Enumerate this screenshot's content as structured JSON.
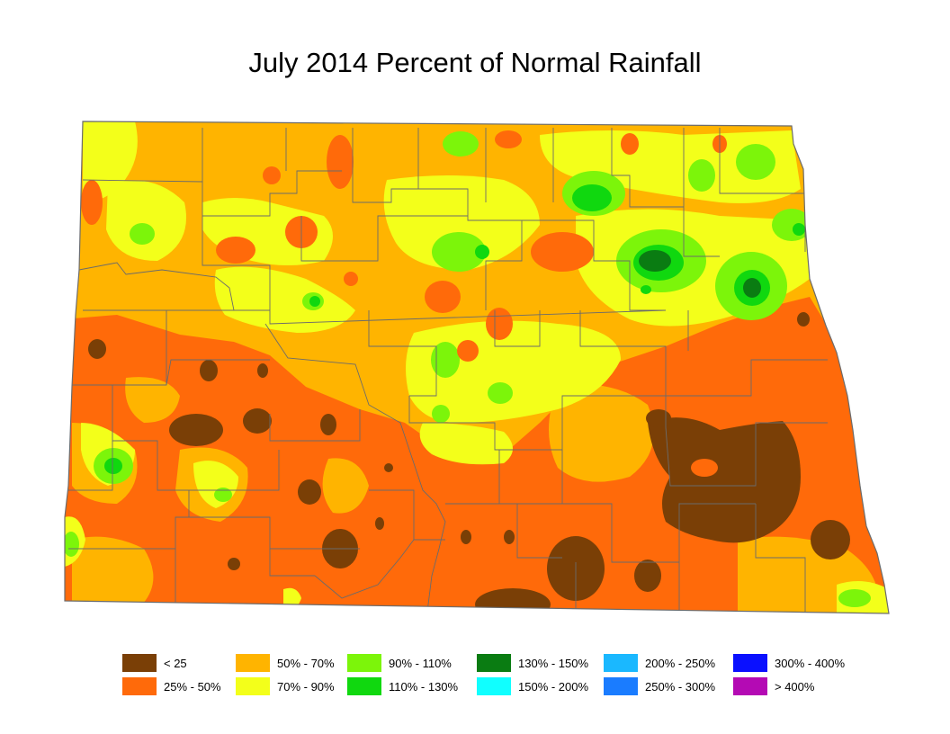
{
  "title": "July 2014 Percent of Normal Rainfall",
  "legend": [
    {
      "label": "< 25",
      "color": "#7a3f06"
    },
    {
      "label": "25% - 50%",
      "color": "#ff6a0a"
    },
    {
      "label": "50% - 70%",
      "color": "#ffb400"
    },
    {
      "label": "70% - 90%",
      "color": "#f3ff1a"
    },
    {
      "label": "90% - 110%",
      "color": "#7cf50a"
    },
    {
      "label": "110% - 130%",
      "color": "#10d80f"
    },
    {
      "label": "130% - 150%",
      "color": "#0a7c12"
    },
    {
      "label": "150% - 200%",
      "color": "#10ffff"
    },
    {
      "label": "200% - 250%",
      "color": "#1ab8ff"
    },
    {
      "label": "250% - 300%",
      "color": "#1a7cff"
    },
    {
      "label": "300% - 400%",
      "color": "#0a10ff"
    },
    {
      "label": "> 400%",
      "color": "#b40ab4"
    }
  ]
}
